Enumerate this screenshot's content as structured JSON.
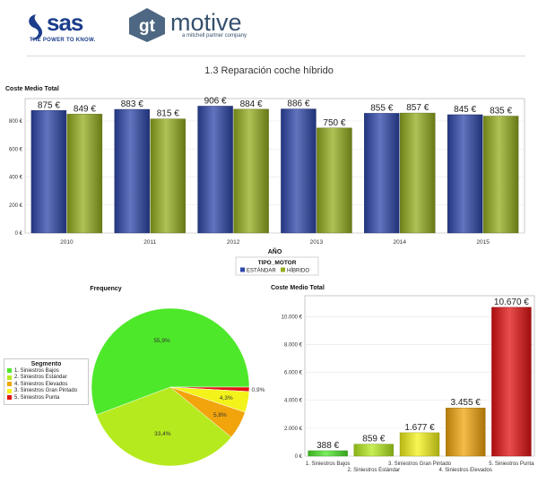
{
  "header": {
    "sas_logo_text": "sas",
    "sas_tagline": "THE POWER TO KNOW.",
    "gt_badge_text": "gt",
    "gt_name": "motive",
    "gt_subtitle": "a mitchell partner company"
  },
  "page_title": "1.3 Reparación coche híbrido",
  "colors": {
    "estandar": "#2d46a8",
    "hibrido": "#93ad1e",
    "seg_bajos": "#4ee82a",
    "seg_estandar": "#b5ea1e",
    "seg_gran_pintado": "#f3f31b",
    "seg_elevados": "#f2a40c",
    "seg_punta": "#e21212"
  },
  "chart_data": [
    {
      "type": "bar",
      "ylabel": "Coste Medio Total",
      "xlabel": "AÑO",
      "categories": [
        "2010",
        "2011",
        "2012",
        "2013",
        "2014",
        "2015"
      ],
      "series": [
        {
          "name": "ESTÁNDAR",
          "values": [
            875,
            883,
            906,
            886,
            855,
            845
          ],
          "labels": [
            "875 €",
            "883 €",
            "906 €",
            "886 €",
            "855 €",
            "845 €"
          ]
        },
        {
          "name": "HÍBRIDO",
          "values": [
            849,
            815,
            884,
            750,
            857,
            835
          ],
          "labels": [
            "849 €",
            "815 €",
            "884 €",
            "750 €",
            "857 €",
            "835 €"
          ]
        }
      ],
      "ylim": [
        0,
        960
      ],
      "yticks": [
        0,
        200,
        400,
        600,
        800
      ],
      "ytick_labels": [
        "0 €",
        "200 €",
        "400 €",
        "600 €",
        "800 €"
      ],
      "legend_title": "TIPO_MOTOR",
      "legend_position": "bottom",
      "grid": true
    },
    {
      "type": "pie",
      "title": "Frequency",
      "legend_title": "Segmento",
      "legend_position": "left",
      "legend": [
        "1. Siniestros Bajos",
        "2. Siniestros Estándar",
        "4. Siniestros Elevados",
        "3. Siniestros Gran Pintado",
        "5. Siniestros Punta"
      ],
      "slices": [
        {
          "name": "1. Siniestros Bajos",
          "value": 55.9,
          "label": "55,9%"
        },
        {
          "name": "2. Siniestros Estándar",
          "value": 33.4,
          "label": "33,4%"
        },
        {
          "name": "4. Siniestros Elevados",
          "value": 5.8,
          "label": "5,8%"
        },
        {
          "name": "3. Siniestros Gran Pintado",
          "value": 4.3,
          "label": "4,3%"
        },
        {
          "name": "5. Siniestros Punta",
          "value": 0.9,
          "label": "0,9%"
        }
      ]
    },
    {
      "type": "bar",
      "ylabel": "Coste Medio Total",
      "categories": [
        "1. Siniestros Bajos",
        "2. Siniestros Estándar",
        "3. Siniestros Gran Pintado",
        "4. Siniestros Elevados",
        "5. Siniestros Punta"
      ],
      "values": [
        388,
        859,
        1677,
        3455,
        10670
      ],
      "labels": [
        "388 €",
        "859 €",
        "1.677 €",
        "3.455 €",
        "10.670 €"
      ],
      "ylim": [
        0,
        11500
      ],
      "yticks": [
        0,
        2000,
        4000,
        6000,
        8000,
        10000
      ],
      "ytick_labels": [
        "0 €",
        "2.000 €",
        "4.000 €",
        "6.000 €",
        "8.000 €",
        "10.000 €"
      ],
      "grid": true
    }
  ]
}
